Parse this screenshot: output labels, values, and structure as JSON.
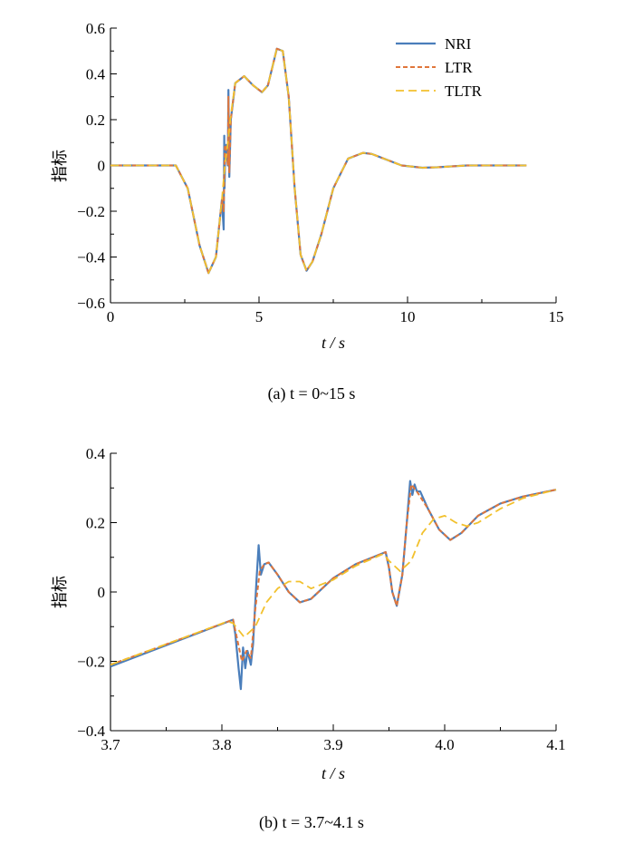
{
  "colors": {
    "NRI": "#4a7ebb",
    "LTR": "#e0763b",
    "TLTR": "#f2c12e"
  },
  "chart_data": [
    {
      "type": "line",
      "caption": "(a)  t = 0~15 s",
      "xlabel": "t / s",
      "ylabel": "指标",
      "xlim": [
        0,
        15
      ],
      "ylim": [
        -0.6,
        0.6
      ],
      "xticks": [
        "0",
        "5",
        "10",
        "15"
      ],
      "yticks": [
        "−0.6",
        "−0.4",
        "−0.2",
        "0",
        "0.2",
        "0.4",
        "0.6"
      ],
      "legend": {
        "position": "top-right",
        "entries": [
          "NRI",
          "LTR",
          "TLTR"
        ]
      },
      "grid": false,
      "series": [
        {
          "name": "NRI",
          "style": "solid",
          "x": [
            0,
            2.2,
            2.6,
            3.0,
            3.3,
            3.55,
            3.75,
            3.81,
            3.83,
            3.84,
            3.86,
            3.9,
            3.95,
            3.97,
            4.0,
            4.05,
            4.2,
            4.5,
            4.8,
            5.1,
            5.3,
            5.6,
            5.8,
            6.0,
            6.2,
            6.4,
            6.6,
            6.8,
            7.1,
            7.5,
            8.0,
            8.5,
            8.8,
            9.2,
            9.8,
            10.5,
            11.0,
            12.0,
            14.0
          ],
          "y": [
            0,
            0,
            -0.1,
            -0.35,
            -0.47,
            -0.4,
            -0.15,
            -0.28,
            0.13,
            -0.1,
            0.05,
            0.09,
            0.0,
            0.33,
            -0.05,
            0.2,
            0.36,
            0.39,
            0.35,
            0.32,
            0.35,
            0.51,
            0.5,
            0.3,
            -0.1,
            -0.39,
            -0.46,
            -0.42,
            -0.3,
            -0.1,
            0.03,
            0.055,
            0.05,
            0.03,
            0.0,
            -0.01,
            -0.008,
            0.0,
            0.0
          ]
        },
        {
          "name": "LTR",
          "style": "dotted",
          "x": [
            0,
            2.2,
            2.6,
            3.0,
            3.3,
            3.55,
            3.75,
            3.81,
            3.85,
            3.9,
            3.95,
            3.97,
            4.0,
            4.05,
            4.2,
            4.5,
            4.8,
            5.1,
            5.3,
            5.6,
            5.8,
            6.0,
            6.2,
            6.4,
            6.6,
            6.8,
            7.1,
            7.5,
            8.0,
            8.5,
            8.8,
            9.2,
            9.8,
            10.5,
            11.0,
            12.0,
            14.0
          ],
          "y": [
            0,
            0,
            -0.1,
            -0.35,
            -0.47,
            -0.4,
            -0.15,
            -0.2,
            0.08,
            0.09,
            0.0,
            0.3,
            -0.03,
            0.2,
            0.36,
            0.39,
            0.35,
            0.32,
            0.35,
            0.51,
            0.5,
            0.3,
            -0.1,
            -0.39,
            -0.46,
            -0.42,
            -0.3,
            -0.1,
            0.03,
            0.055,
            0.05,
            0.03,
            0.0,
            -0.01,
            -0.008,
            0.0,
            0.0
          ]
        },
        {
          "name": "TLTR",
          "style": "dashed",
          "x": [
            0,
            2.2,
            2.6,
            3.0,
            3.3,
            3.55,
            3.75,
            3.85,
            3.95,
            4.05,
            4.2,
            4.5,
            4.8,
            5.1,
            5.3,
            5.6,
            5.8,
            6.0,
            6.2,
            6.4,
            6.6,
            6.8,
            7.1,
            7.5,
            8.0,
            8.5,
            8.8,
            9.2,
            9.8,
            10.5,
            11.0,
            12.0,
            14.0
          ],
          "y": [
            0,
            0,
            -0.1,
            -0.35,
            -0.47,
            -0.4,
            -0.15,
            0.0,
            0.1,
            0.22,
            0.36,
            0.39,
            0.35,
            0.32,
            0.35,
            0.51,
            0.5,
            0.3,
            -0.1,
            -0.39,
            -0.46,
            -0.42,
            -0.3,
            -0.1,
            0.03,
            0.055,
            0.05,
            0.03,
            0.0,
            -0.01,
            -0.008,
            0.0,
            0.0
          ]
        }
      ]
    },
    {
      "type": "line",
      "caption": "(b)  t = 3.7~4.1 s",
      "xlabel": "t / s",
      "ylabel": "指标",
      "xlim": [
        3.7,
        4.1
      ],
      "ylim": [
        -0.4,
        0.4
      ],
      "xticks": [
        "3.7",
        "3.8",
        "3.9",
        "4.0",
        "4.1"
      ],
      "yticks": [
        "−0.4",
        "−0.2",
        "0",
        "0.2",
        "0.4"
      ],
      "grid": false,
      "series": [
        {
          "name": "NRI",
          "style": "solid",
          "x": [
            3.7,
            3.81,
            3.812,
            3.815,
            3.817,
            3.819,
            3.821,
            3.823,
            3.826,
            3.828,
            3.831,
            3.833,
            3.835,
            3.838,
            3.842,
            3.85,
            3.86,
            3.87,
            3.88,
            3.9,
            3.92,
            3.947,
            3.95,
            3.953,
            3.957,
            3.962,
            3.966,
            3.969,
            3.971,
            3.973,
            3.975,
            3.978,
            3.985,
            3.995,
            4.005,
            4.015,
            4.03,
            4.05,
            4.07,
            4.1
          ],
          "y": [
            -0.215,
            -0.08,
            -0.12,
            -0.22,
            -0.28,
            -0.16,
            -0.22,
            -0.17,
            -0.21,
            -0.15,
            0.03,
            0.135,
            0.05,
            0.08,
            0.085,
            0.05,
            0.0,
            -0.03,
            -0.02,
            0.04,
            0.08,
            0.115,
            0.07,
            0.0,
            -0.04,
            0.05,
            0.2,
            0.32,
            0.28,
            0.31,
            0.29,
            0.29,
            0.24,
            0.18,
            0.15,
            0.17,
            0.22,
            0.255,
            0.275,
            0.295
          ]
        },
        {
          "name": "LTR",
          "style": "dotted",
          "x": [
            3.7,
            3.81,
            3.814,
            3.818,
            3.822,
            3.826,
            3.83,
            3.834,
            3.838,
            3.842,
            3.85,
            3.86,
            3.87,
            3.88,
            3.9,
            3.92,
            3.947,
            3.95,
            3.953,
            3.957,
            3.962,
            3.966,
            3.97,
            3.975,
            3.985,
            3.995,
            4.005,
            4.015,
            4.03,
            4.05,
            4.07,
            4.1
          ],
          "y": [
            -0.21,
            -0.08,
            -0.14,
            -0.2,
            -0.17,
            -0.19,
            -0.05,
            0.06,
            0.08,
            0.085,
            0.05,
            0.0,
            -0.03,
            -0.02,
            0.04,
            0.08,
            0.115,
            0.07,
            0.0,
            -0.04,
            0.05,
            0.2,
            0.31,
            0.29,
            0.24,
            0.18,
            0.15,
            0.17,
            0.22,
            0.255,
            0.275,
            0.295
          ]
        },
        {
          "name": "TLTR",
          "style": "dashed",
          "x": [
            3.7,
            3.805,
            3.81,
            3.82,
            3.83,
            3.84,
            3.85,
            3.86,
            3.87,
            3.88,
            3.9,
            3.92,
            3.945,
            3.95,
            3.96,
            3.97,
            3.98,
            3.99,
            4.0,
            4.01,
            4.02,
            4.03,
            4.05,
            4.07,
            4.1
          ],
          "y": [
            -0.21,
            -0.085,
            -0.09,
            -0.13,
            -0.1,
            -0.03,
            0.01,
            0.03,
            0.03,
            0.01,
            0.035,
            0.075,
            0.11,
            0.09,
            0.06,
            0.09,
            0.17,
            0.21,
            0.22,
            0.2,
            0.19,
            0.2,
            0.24,
            0.27,
            0.295
          ]
        }
      ]
    }
  ]
}
